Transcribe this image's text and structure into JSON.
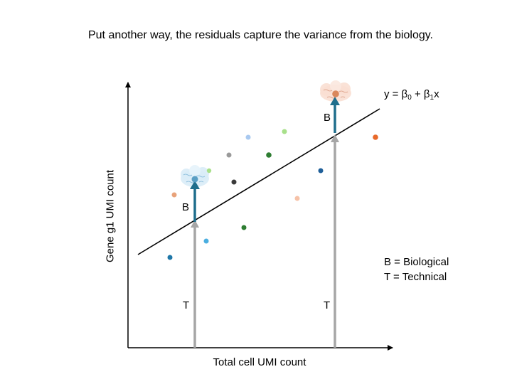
{
  "caption": "Put another way, the residuals capture the variance from the biology.",
  "axes": {
    "x_label": "Total cell UMI count",
    "y_label": "Gene g1 UMI count"
  },
  "equation": {
    "y": "y",
    "eq": " = β",
    "sub0": "0",
    "plus": " + β",
    "sub1": "1",
    "x": "x"
  },
  "arrow_labels": {
    "biological": "B",
    "technical": "T"
  },
  "legend": {
    "line1": "B = Biological",
    "line2": "T = Technical"
  },
  "colors": {
    "axis": "#000000",
    "regression_line": "#000000",
    "technical_arrow": "#a6a6a6",
    "biological_arrow": "#1f6e8c",
    "cloud_left": "#d9ecf7",
    "cloud_right": "#f9dfd3"
  },
  "icons": [
    "blue-cloud-icon",
    "peach-cloud-icon"
  ]
}
